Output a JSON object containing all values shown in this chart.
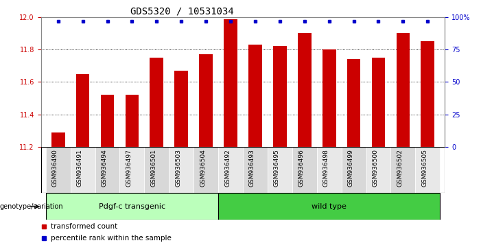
{
  "title": "GDS5320 / 10531034",
  "samples": [
    "GSM936490",
    "GSM936491",
    "GSM936494",
    "GSM936497",
    "GSM936501",
    "GSM936503",
    "GSM936504",
    "GSM936492",
    "GSM936493",
    "GSM936495",
    "GSM936496",
    "GSM936498",
    "GSM936499",
    "GSM936500",
    "GSM936502",
    "GSM936505"
  ],
  "bar_values": [
    11.29,
    11.65,
    11.52,
    11.52,
    11.75,
    11.67,
    11.77,
    11.985,
    11.83,
    11.82,
    11.9,
    11.8,
    11.74,
    11.75,
    11.9,
    11.85
  ],
  "percentile_values": [
    100,
    100,
    100,
    100,
    100,
    100,
    100,
    100,
    100,
    100,
    100,
    100,
    100,
    100,
    100,
    100
  ],
  "bar_color": "#cc0000",
  "percentile_color": "#0000cc",
  "ylim_left": [
    11.2,
    12.0
  ],
  "ylim_right": [
    0,
    100
  ],
  "yticks_left": [
    11.2,
    11.4,
    11.6,
    11.8,
    12.0
  ],
  "yticks_right": [
    0,
    25,
    50,
    75,
    100
  ],
  "ylabel_right_labels": [
    "0",
    "25",
    "50",
    "75",
    "100%"
  ],
  "group1_label": "Pdgf-c transgenic",
  "group2_label": "wild type",
  "group1_count": 7,
  "group2_count": 9,
  "group1_color": "#bbffbb",
  "group2_color": "#44cc44",
  "genotype_label": "genotype/variation",
  "legend_items": [
    {
      "color": "#cc0000",
      "label": "transformed count"
    },
    {
      "color": "#0000cc",
      "label": "percentile rank within the sample"
    }
  ],
  "bar_width": 0.55,
  "background_color": "#ffffff",
  "plot_bg_color": "#ffffff",
  "tick_label_color_left": "#cc0000",
  "tick_label_color_right": "#0000cc",
  "title_fontsize": 10,
  "tick_fontsize": 7,
  "xtick_fontsize": 6.5
}
